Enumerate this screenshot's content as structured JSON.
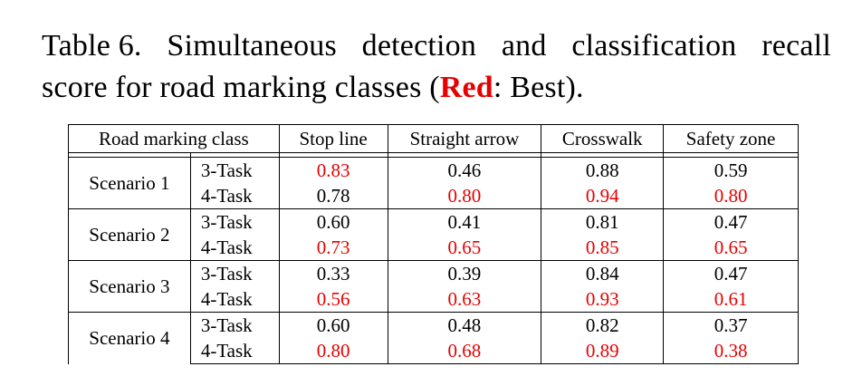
{
  "caption": {
    "prefix": "Table 6.",
    "line1_words": [
      "Simultaneous",
      "detection",
      "and",
      "classification",
      "recall"
    ],
    "line2_start": "score for road marking classes (",
    "best_word": "Red",
    "line2_end": ": Best)."
  },
  "colors": {
    "best": "#e60000"
  },
  "table": {
    "headers": [
      "Road marking class",
      "Stop line",
      "Straight arrow",
      "Crosswalk",
      "Safety zone"
    ],
    "groups": [
      {
        "scenario": "Scenario 1",
        "rows": [
          {
            "task": "3-Task",
            "values": [
              "0.83",
              "0.46",
              "0.88",
              "0.59"
            ],
            "best": [
              true,
              false,
              false,
              false
            ]
          },
          {
            "task": "4-Task",
            "values": [
              "0.78",
              "0.80",
              "0.94",
              "0.80"
            ],
            "best": [
              false,
              true,
              true,
              true
            ]
          }
        ]
      },
      {
        "scenario": "Scenario 2",
        "rows": [
          {
            "task": "3-Task",
            "values": [
              "0.60",
              "0.41",
              "0.81",
              "0.47"
            ],
            "best": [
              false,
              false,
              false,
              false
            ]
          },
          {
            "task": "4-Task",
            "values": [
              "0.73",
              "0.65",
              "0.85",
              "0.65"
            ],
            "best": [
              true,
              true,
              true,
              true
            ]
          }
        ]
      },
      {
        "scenario": "Scenario 3",
        "rows": [
          {
            "task": "3-Task",
            "values": [
              "0.33",
              "0.39",
              "0.84",
              "0.47"
            ],
            "best": [
              false,
              false,
              false,
              false
            ]
          },
          {
            "task": "4-Task",
            "values": [
              "0.56",
              "0.63",
              "0.93",
              "0.61"
            ],
            "best": [
              true,
              true,
              true,
              true
            ]
          }
        ]
      },
      {
        "scenario": "Scenario 4",
        "rows": [
          {
            "task": "3-Task",
            "values": [
              "0.60",
              "0.48",
              "0.82",
              "0.37"
            ],
            "best": [
              false,
              false,
              false,
              false
            ]
          },
          {
            "task": "4-Task",
            "values": [
              "0.80",
              "0.68",
              "0.89",
              "0.38"
            ],
            "best": [
              true,
              true,
              true,
              true
            ]
          }
        ]
      }
    ]
  }
}
